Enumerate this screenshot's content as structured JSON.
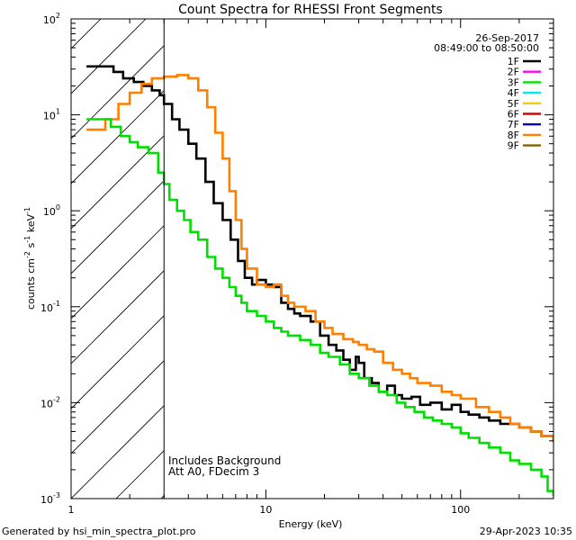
{
  "chart_data": {
    "type": "line",
    "title": "Count Spectra for RHESSI Front Segments",
    "xlabel": "Energy (keV)",
    "ylabel": {
      "base": "counts cm",
      "e1": "-2",
      "mid": " s",
      "e2": "-1",
      "tail": " keV",
      "e3": "-1"
    },
    "x_scale": "log",
    "y_scale": "log",
    "xlim": [
      1,
      300
    ],
    "ylim": [
      0.001,
      100
    ],
    "x_ticks": [
      {
        "value": 1,
        "label": "1"
      },
      {
        "value": 10,
        "label": "10"
      },
      {
        "value": 100,
        "label": "100"
      }
    ],
    "y_ticks": [
      {
        "value": 100,
        "base": "10",
        "exp": "2"
      },
      {
        "value": 10,
        "base": "10",
        "exp": "1"
      },
      {
        "value": 1,
        "base": "10",
        "exp": "0"
      },
      {
        "value": 0.1,
        "base": "10",
        "exp": "-1"
      },
      {
        "value": 0.01,
        "base": "10",
        "exp": "-2"
      },
      {
        "value": 0.001,
        "base": "10",
        "exp": "-3"
      }
    ],
    "shaded_region": {
      "x_min": 1,
      "x_max": 3,
      "style": "diagonal-hatch"
    },
    "date": "26-Sep-2017",
    "time_range": "08:49:00 to 08:50:00",
    "legend": [
      {
        "name": "1F",
        "color": "#000000"
      },
      {
        "name": "2F",
        "color": "#ff00ff"
      },
      {
        "name": "3F",
        "color": "#00e000"
      },
      {
        "name": "4F",
        "color": "#00e5ee"
      },
      {
        "name": "5F",
        "color": "#e8d200"
      },
      {
        "name": "6F",
        "color": "#e00000"
      },
      {
        "name": "7F",
        "color": "#0000cc"
      },
      {
        "name": "8F",
        "color": "#ff8000"
      },
      {
        "name": "9F",
        "color": "#806000"
      }
    ],
    "annotations": [
      "Includes Background",
      "Att A0, FDecim 3"
    ],
    "series": [
      {
        "name": "1F",
        "color": "#000000",
        "points": [
          [
            1.2,
            32
          ],
          [
            1.5,
            32
          ],
          [
            1.65,
            28
          ],
          [
            1.85,
            24
          ],
          [
            2.1,
            22
          ],
          [
            2.35,
            20
          ],
          [
            2.6,
            18
          ],
          [
            2.85,
            16
          ],
          [
            3.0,
            13
          ],
          [
            3.3,
            9
          ],
          [
            3.6,
            7
          ],
          [
            4.0,
            5
          ],
          [
            4.4,
            3.5
          ],
          [
            4.9,
            2
          ],
          [
            5.4,
            1.2
          ],
          [
            6.0,
            0.8
          ],
          [
            6.6,
            0.5
          ],
          [
            7.2,
            0.3
          ],
          [
            7.8,
            0.2
          ],
          [
            8.5,
            0.17
          ],
          [
            9.0,
            0.19
          ],
          [
            10,
            0.17
          ],
          [
            11,
            0.16
          ],
          [
            12,
            0.11
          ],
          [
            13,
            0.095
          ],
          [
            14,
            0.085
          ],
          [
            15,
            0.08
          ],
          [
            17,
            0.07
          ],
          [
            19,
            0.05
          ],
          [
            21,
            0.04
          ],
          [
            23,
            0.035
          ],
          [
            25,
            0.028
          ],
          [
            27,
            0.022
          ],
          [
            29,
            0.03
          ],
          [
            30,
            0.026
          ],
          [
            32,
            0.018
          ],
          [
            35,
            0.016
          ],
          [
            38,
            0.013
          ],
          [
            42,
            0.015
          ],
          [
            46,
            0.012
          ],
          [
            50,
            0.011
          ],
          [
            56,
            0.0115
          ],
          [
            62,
            0.0095
          ],
          [
            70,
            0.01
          ],
          [
            80,
            0.0085
          ],
          [
            90,
            0.0095
          ],
          [
            100,
            0.008
          ],
          [
            110,
            0.0075
          ],
          [
            125,
            0.007
          ],
          [
            140,
            0.0065
          ],
          [
            160,
            0.006
          ],
          [
            180,
            0.006
          ],
          [
            200,
            0.0055
          ],
          [
            230,
            0.005
          ],
          [
            260,
            0.0045
          ],
          [
            300,
            0.004
          ]
        ]
      },
      {
        "name": "8F",
        "color": "#ff8000",
        "points": [
          [
            1.2,
            7
          ],
          [
            1.4,
            7
          ],
          [
            1.5,
            9
          ],
          [
            1.75,
            13
          ],
          [
            2.0,
            17
          ],
          [
            2.3,
            21
          ],
          [
            2.6,
            24
          ],
          [
            3.0,
            25
          ],
          [
            3.5,
            26
          ],
          [
            4.0,
            24
          ],
          [
            4.5,
            18
          ],
          [
            5.0,
            12
          ],
          [
            5.5,
            6.5
          ],
          [
            6.0,
            3.5
          ],
          [
            6.5,
            1.6
          ],
          [
            7.0,
            0.8
          ],
          [
            7.5,
            0.4
          ],
          [
            8.0,
            0.25
          ],
          [
            9.0,
            0.17
          ],
          [
            10,
            0.16
          ],
          [
            11,
            0.17
          ],
          [
            12,
            0.13
          ],
          [
            13,
            0.11
          ],
          [
            14,
            0.1
          ],
          [
            16,
            0.09
          ],
          [
            18,
            0.07
          ],
          [
            20,
            0.06
          ],
          [
            22,
            0.052
          ],
          [
            25,
            0.046
          ],
          [
            28,
            0.043
          ],
          [
            30,
            0.04
          ],
          [
            33,
            0.036
          ],
          [
            36,
            0.034
          ],
          [
            40,
            0.026
          ],
          [
            45,
            0.022
          ],
          [
            50,
            0.02
          ],
          [
            55,
            0.018
          ],
          [
            60,
            0.016
          ],
          [
            70,
            0.015
          ],
          [
            80,
            0.013
          ],
          [
            90,
            0.012
          ],
          [
            100,
            0.011
          ],
          [
            120,
            0.009
          ],
          [
            140,
            0.008
          ],
          [
            160,
            0.007
          ],
          [
            180,
            0.006
          ],
          [
            200,
            0.0055
          ],
          [
            230,
            0.005
          ],
          [
            260,
            0.0045
          ],
          [
            300,
            0.004
          ]
        ]
      },
      {
        "name": "3F",
        "color": "#00e000",
        "points": [
          [
            1.2,
            9
          ],
          [
            1.4,
            9
          ],
          [
            1.6,
            7.5
          ],
          [
            1.8,
            6
          ],
          [
            2.0,
            5.2
          ],
          [
            2.2,
            4.6
          ],
          [
            2.5,
            4
          ],
          [
            2.8,
            2.5
          ],
          [
            3.0,
            1.9
          ],
          [
            3.2,
            1.3
          ],
          [
            3.5,
            1.0
          ],
          [
            3.8,
            0.8
          ],
          [
            4.1,
            0.6
          ],
          [
            4.5,
            0.5
          ],
          [
            5.0,
            0.33
          ],
          [
            5.5,
            0.25
          ],
          [
            6.0,
            0.2
          ],
          [
            6.5,
            0.16
          ],
          [
            7.0,
            0.13
          ],
          [
            7.5,
            0.11
          ],
          [
            8.0,
            0.09
          ],
          [
            9.0,
            0.08
          ],
          [
            10,
            0.07
          ],
          [
            11,
            0.06
          ],
          [
            12,
            0.055
          ],
          [
            13,
            0.05
          ],
          [
            15,
            0.045
          ],
          [
            17,
            0.04
          ],
          [
            19,
            0.033
          ],
          [
            21,
            0.03
          ],
          [
            24,
            0.025
          ],
          [
            27,
            0.02
          ],
          [
            30,
            0.018
          ],
          [
            34,
            0.015
          ],
          [
            38,
            0.013
          ],
          [
            42,
            0.012
          ],
          [
            47,
            0.01
          ],
          [
            52,
            0.009
          ],
          [
            58,
            0.008
          ],
          [
            65,
            0.007
          ],
          [
            72,
            0.0065
          ],
          [
            80,
            0.006
          ],
          [
            90,
            0.0055
          ],
          [
            100,
            0.0048
          ],
          [
            110,
            0.0043
          ],
          [
            125,
            0.0038
          ],
          [
            140,
            0.0034
          ],
          [
            160,
            0.003
          ],
          [
            180,
            0.0025
          ],
          [
            200,
            0.0023
          ],
          [
            230,
            0.002
          ],
          [
            260,
            0.0017
          ],
          [
            280,
            0.0012
          ],
          [
            300,
            0.0011
          ]
        ]
      }
    ]
  },
  "footer": {
    "generated_by": "Generated by hsi_min_spectra_plot.pro",
    "timestamp": "29-Apr-2023 10:35"
  }
}
